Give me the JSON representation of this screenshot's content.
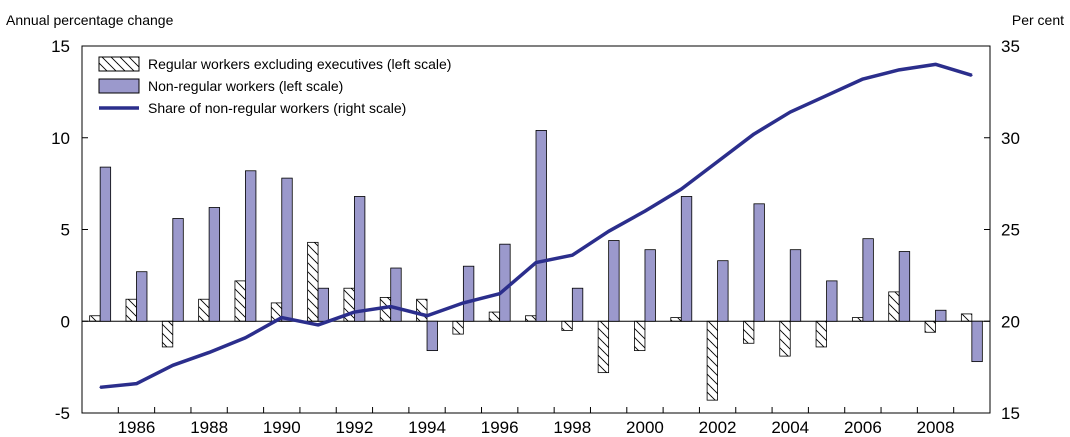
{
  "chart_data": {
    "type": "bar",
    "left_axis_label": "Annual percentage change",
    "right_axis_label": "Per cent",
    "x": [
      1985,
      1986,
      1987,
      1988,
      1989,
      1990,
      1991,
      1992,
      1993,
      1994,
      1995,
      1996,
      1997,
      1998,
      1999,
      2000,
      2001,
      2002,
      2003,
      2004,
      2005,
      2006,
      2007,
      2008,
      2009
    ],
    "x_tick_labels": [
      "1986",
      "1988",
      "1990",
      "1992",
      "1994",
      "1996",
      "1998",
      "2000",
      "2002",
      "2004",
      "2006",
      "2008"
    ],
    "y_left_ticks": [
      "15",
      "10",
      "5",
      "0",
      "-5"
    ],
    "y_right_ticks": [
      "35",
      "30",
      "25",
      "20",
      "15"
    ],
    "ylim_left": [
      -5,
      15
    ],
    "ylim_right": [
      15,
      35
    ],
    "series": [
      {
        "name": "Regular workers excluding executives (left scale)",
        "type": "bar",
        "axis": "left",
        "pattern": "hatched",
        "values": [
          0.3,
          1.2,
          -1.4,
          1.2,
          2.2,
          1.0,
          4.3,
          1.8,
          1.3,
          1.2,
          -0.7,
          0.5,
          0.3,
          -0.5,
          -2.8,
          -1.6,
          0.2,
          -4.3,
          -1.2,
          -1.9,
          -1.4,
          0.2,
          1.6,
          -0.6,
          0.4
        ]
      },
      {
        "name": "Non-regular workers (left scale)",
        "type": "bar",
        "axis": "left",
        "color": "#9b99cc",
        "values": [
          8.4,
          2.7,
          5.6,
          6.2,
          8.2,
          7.8,
          1.8,
          6.8,
          2.9,
          -1.6,
          3.0,
          4.2,
          10.4,
          1.8,
          4.4,
          3.9,
          6.8,
          3.3,
          6.4,
          3.9,
          2.2,
          4.5,
          3.8,
          0.6,
          -2.2
        ]
      },
      {
        "name": "Share of non-regular workers (right scale)",
        "type": "line",
        "axis": "right",
        "color": "#2b2e8c",
        "values": [
          16.4,
          16.6,
          17.6,
          18.3,
          19.1,
          20.2,
          19.8,
          20.5,
          20.8,
          20.3,
          21.0,
          21.5,
          23.2,
          23.6,
          24.9,
          26.0,
          27.2,
          28.7,
          30.2,
          31.4,
          32.3,
          33.2,
          33.7,
          34.0,
          33.4
        ]
      }
    ],
    "grid": false,
    "legend_position": "top-left"
  }
}
